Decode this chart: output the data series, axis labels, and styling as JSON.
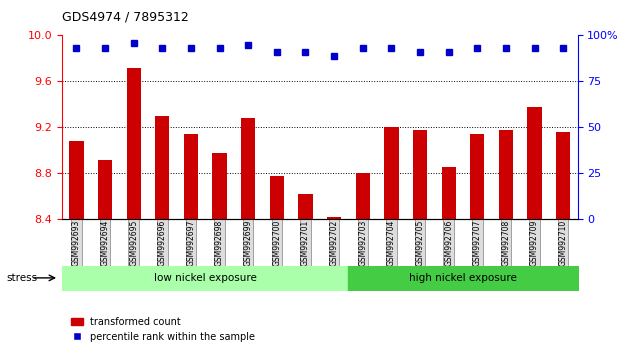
{
  "title": "GDS4974 / 7895312",
  "categories": [
    "GSM992693",
    "GSM992694",
    "GSM992695",
    "GSM992696",
    "GSM992697",
    "GSM992698",
    "GSM992699",
    "GSM992700",
    "GSM992701",
    "GSM992702",
    "GSM992703",
    "GSM992704",
    "GSM992705",
    "GSM992706",
    "GSM992707",
    "GSM992708",
    "GSM992709",
    "GSM992710"
  ],
  "bar_values": [
    9.08,
    8.92,
    9.72,
    9.3,
    9.14,
    8.98,
    9.28,
    8.78,
    8.62,
    8.42,
    8.8,
    9.2,
    9.18,
    8.86,
    9.14,
    9.18,
    9.38,
    9.16
  ],
  "dot_values": [
    93,
    93,
    96,
    93,
    93,
    93,
    95,
    91,
    91,
    89,
    93,
    93,
    91,
    91,
    93,
    93,
    93,
    93
  ],
  "bar_color": "#cc0000",
  "dot_color": "#0000cc",
  "ylim_left": [
    8.4,
    10.0
  ],
  "ylim_right": [
    0,
    100
  ],
  "yticks_left": [
    8.4,
    8.8,
    9.2,
    9.6,
    10.0
  ],
  "yticks_right": [
    0,
    25,
    50,
    75,
    100
  ],
  "grid_values": [
    8.8,
    9.2,
    9.6
  ],
  "low_group_label": "low nickel exposure",
  "high_group_label": "high nickel exposure",
  "low_group_range": [
    0,
    9
  ],
  "high_group_range": [
    10,
    17
  ],
  "stress_label": "stress",
  "legend_bar_label": "transformed count",
  "legend_dot_label": "percentile rank within the sample",
  "background_color": "#ffffff",
  "plot_bg_color": "#ffffff",
  "low_nickel_color": "#aaffaa",
  "high_nickel_color": "#44cc44",
  "xticklabel_bg": "#dddddd"
}
